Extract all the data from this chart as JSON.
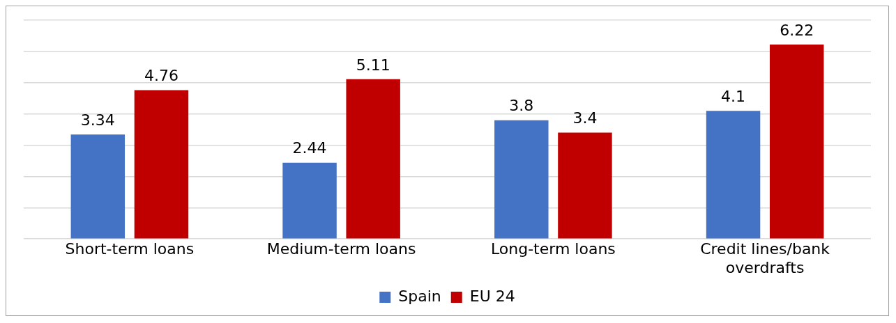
{
  "chart_data": {
    "type": "bar",
    "categories": [
      "Short-term loans",
      "Medium-term loans",
      "Long-term loans",
      "Credit lines/bank overdrafts"
    ],
    "series": [
      {
        "name": "Spain",
        "color": "#4472c4",
        "values": [
          3.34,
          2.44,
          3.8,
          4.1
        ]
      },
      {
        "name": "EU 24",
        "color": "#c00000",
        "values": [
          4.76,
          5.11,
          3.4,
          6.22
        ]
      }
    ],
    "ylim": [
      0,
      7
    ],
    "yticks": [
      {
        "value": 0,
        "label": null
      },
      {
        "value": 1,
        "label": null
      },
      {
        "value": 2,
        "label": null
      },
      {
        "value": 3,
        "label": null
      },
      {
        "value": 4,
        "label": null
      },
      {
        "value": 5,
        "label": null
      },
      {
        "value": 6,
        "label": null
      },
      {
        "value": 7,
        "label": null
      }
    ],
    "grid": "y",
    "tick_labels": "x",
    "data_labels": true,
    "legend": "bottom"
  }
}
